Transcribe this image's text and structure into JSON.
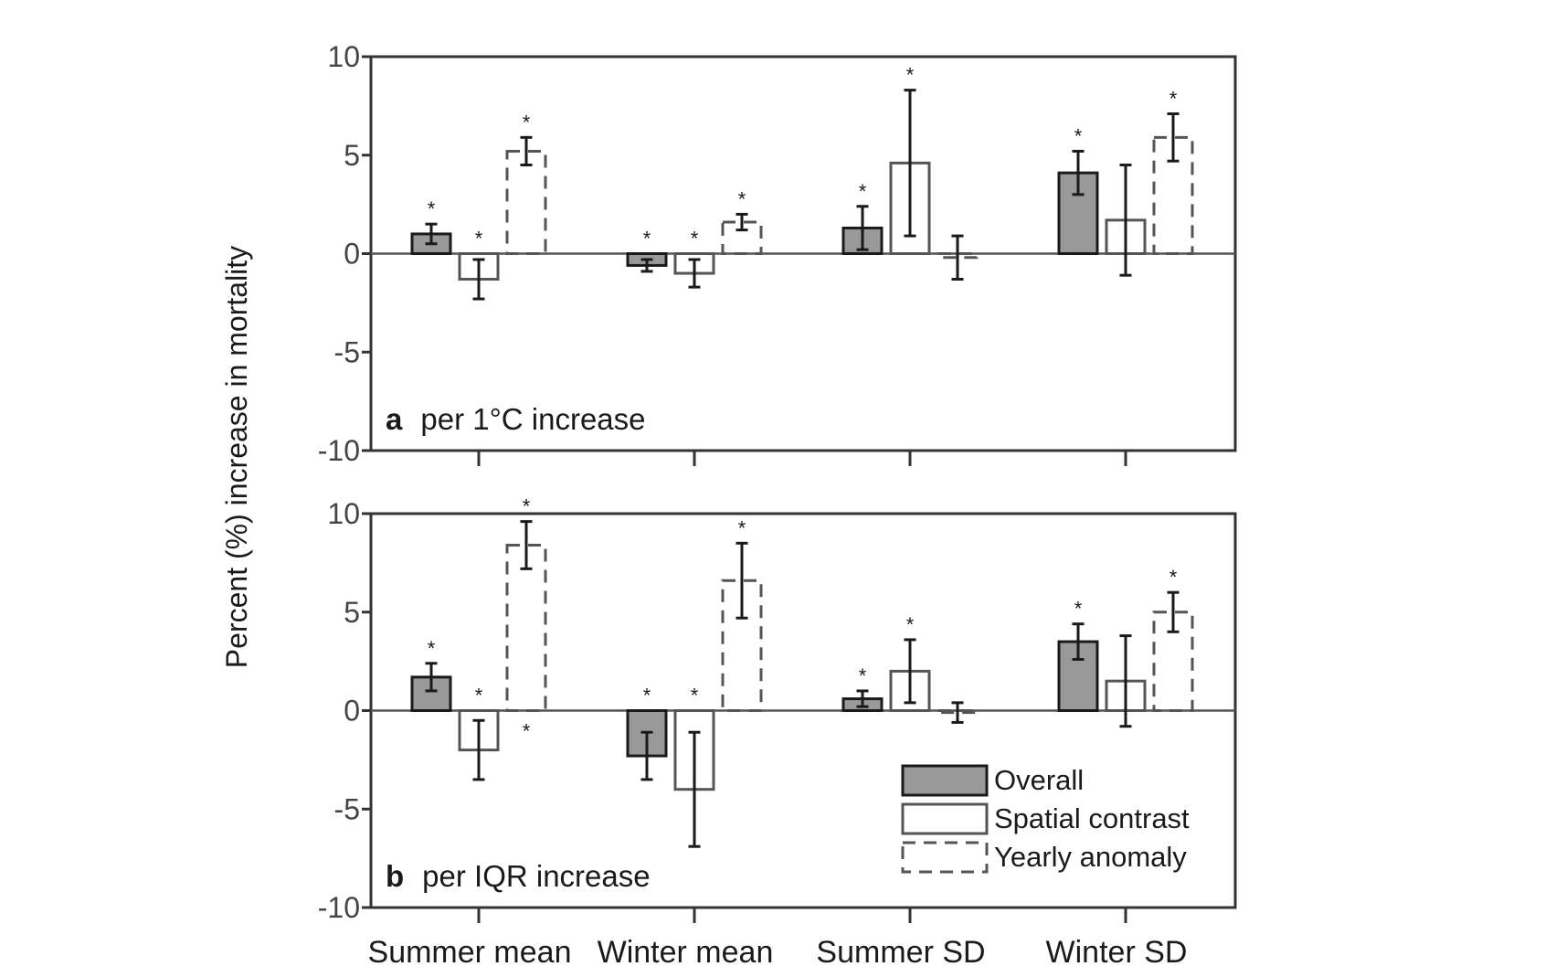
{
  "chart_data": {
    "type": "bar",
    "ylabel": "Percent (%) increase in mortality",
    "categories": [
      "Summer mean",
      "Winter mean",
      "Summer SD",
      "Winter SD"
    ],
    "legend": {
      "placement": "bottom-right",
      "entries": [
        "Overall",
        "Spatial contrast",
        "Yearly anomaly"
      ]
    },
    "panels": [
      {
        "id": "a",
        "label_letter": "a",
        "label_text": "per 1°C increase",
        "ylim": [
          -10,
          10
        ],
        "yticks": [
          "10",
          "5",
          "0",
          "-5",
          "-10"
        ],
        "series": [
          {
            "name": "Overall",
            "style": "filled",
            "values": [
              1.0,
              -0.6,
              1.3,
              4.1
            ],
            "lower": [
              0.5,
              -0.9,
              0.2,
              3.0
            ],
            "upper": [
              1.5,
              -0.3,
              2.4,
              5.2
            ],
            "significant": [
              true,
              true,
              true,
              true
            ]
          },
          {
            "name": "Spatial contrast",
            "style": "outline",
            "values": [
              -1.3,
              -1.0,
              4.6,
              1.7
            ],
            "lower": [
              -2.3,
              -1.7,
              0.9,
              -1.1
            ],
            "upper": [
              -0.3,
              -0.3,
              8.3,
              4.5
            ],
            "significant": [
              true,
              true,
              true,
              false
            ]
          },
          {
            "name": "Yearly anomaly",
            "style": "dashed",
            "values": [
              5.2,
              1.6,
              -0.2,
              5.9
            ],
            "lower": [
              4.5,
              1.2,
              -1.3,
              4.7
            ],
            "upper": [
              5.9,
              2.0,
              0.9,
              7.1
            ],
            "significant": [
              true,
              true,
              false,
              true
            ]
          }
        ]
      },
      {
        "id": "b",
        "label_letter": "b",
        "label_text": "per IQR increase",
        "ylim": [
          -10,
          10
        ],
        "yticks": [
          "10",
          "5",
          "0",
          "-5",
          "-10"
        ],
        "series": [
          {
            "name": "Overall",
            "style": "filled",
            "values": [
              1.7,
              -2.3,
              0.6,
              3.5
            ],
            "lower": [
              1.0,
              -3.5,
              0.2,
              2.6
            ],
            "upper": [
              2.4,
              -1.1,
              1.0,
              4.4
            ],
            "significant": [
              true,
              true,
              true,
              true
            ]
          },
          {
            "name": "Spatial contrast",
            "style": "outline",
            "values": [
              -2.0,
              -4.0,
              2.0,
              1.5
            ],
            "lower": [
              -3.5,
              -6.9,
              0.4,
              -0.8
            ],
            "upper": [
              -0.5,
              -1.1,
              3.6,
              3.8
            ],
            "significant": [
              true,
              true,
              true,
              false
            ]
          },
          {
            "name": "Yearly anomaly",
            "style": "dashed",
            "values": [
              8.4,
              6.6,
              -0.1,
              5.0
            ],
            "lower": [
              7.2,
              4.7,
              -0.6,
              4.0
            ],
            "upper": [
              9.6,
              8.5,
              0.4,
              6.0
            ],
            "significant": [
              true,
              true,
              false,
              true
            ]
          }
        ],
        "extra_marks": [
          {
            "category_index": 0,
            "series_index": 2,
            "position": "below-zero",
            "text": "*"
          }
        ]
      }
    ],
    "significance_marker": "*",
    "colors": {
      "overall_fill": "#999999",
      "outline": "#555555",
      "axis": "#333333",
      "errorbar": "#1a1a1a"
    }
  }
}
